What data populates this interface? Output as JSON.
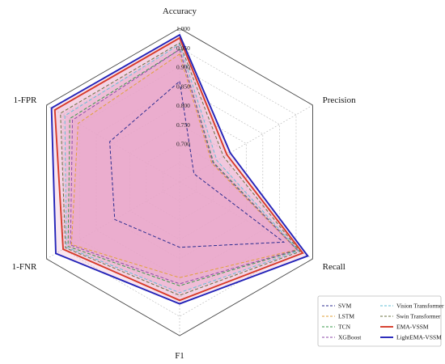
{
  "chart_data": {
    "type": "radar",
    "axes": [
      "Accuracy",
      "Precision",
      "Recall",
      "F1",
      "1-FNR",
      "1-FPR"
    ],
    "radial_ticks": [
      "0.700",
      "0.750",
      "0.800",
      "0.850",
      "0.900",
      "0.950",
      "1.000"
    ],
    "rlim": [
      0.6,
      1.0
    ],
    "grid": true,
    "legend_position": "bottom-right",
    "series": [
      {
        "name": "SVM",
        "color": "#2b2b8f",
        "dash": "dashed",
        "fill": false,
        "values": [
          0.862,
          0.643,
          0.913,
          0.77,
          0.795,
          0.81
        ]
      },
      {
        "name": "LSTM",
        "color": "#e0a03a",
        "dash": "dashed",
        "fill": true,
        "values": [
          0.933,
          0.697,
          0.952,
          0.849,
          0.925,
          0.905
        ]
      },
      {
        "name": "TCN",
        "color": "#3a9a4a",
        "dash": "dashed",
        "fill": true,
        "values": [
          0.945,
          0.702,
          0.955,
          0.87,
          0.935,
          0.93
        ]
      },
      {
        "name": "XGBoost",
        "color": "#8e4aa8",
        "dash": "dashed",
        "fill": true,
        "values": [
          0.945,
          0.7,
          0.953,
          0.865,
          0.928,
          0.922
        ]
      },
      {
        "name": "Vision Transformer",
        "color": "#62bfd6",
        "dash": "dashed",
        "fill": true,
        "values": [
          0.958,
          0.712,
          0.958,
          0.888,
          0.94,
          0.945
        ]
      },
      {
        "name": "Swin Transformer",
        "color": "#6b7040",
        "dash": "dashed",
        "fill": true,
        "values": [
          0.962,
          0.732,
          0.962,
          0.895,
          0.943,
          0.958
        ]
      },
      {
        "name": "EMA-VSSM",
        "color": "#d63a2a",
        "dash": "solid",
        "fill": true,
        "values": [
          0.975,
          0.742,
          0.97,
          0.908,
          0.95,
          0.975
        ]
      },
      {
        "name": "LightEMA-VSSM",
        "color": "#2323b8",
        "dash": "solid",
        "fill": true,
        "values": [
          0.983,
          0.752,
          0.985,
          0.917,
          0.972,
          0.985
        ]
      }
    ]
  }
}
